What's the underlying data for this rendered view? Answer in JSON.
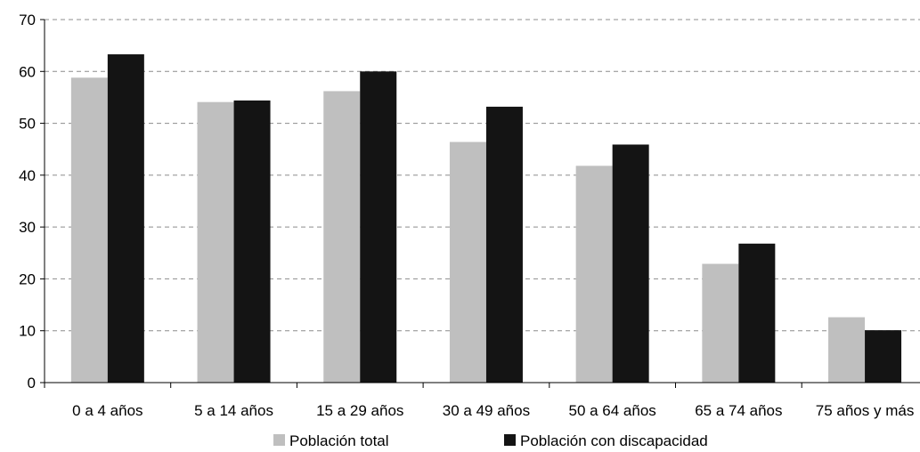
{
  "chart_data": {
    "type": "bar",
    "categories": [
      "0 a 4 años",
      "5 a 14 años",
      "15 a 29 años",
      "30 a 49 años",
      "50 a 64 años",
      "65 a 74 años",
      "75 años y más"
    ],
    "series": [
      {
        "name": "Población total",
        "color": "#bfbfbf",
        "values": [
          58.8,
          54.1,
          56.2,
          46.4,
          41.8,
          22.9,
          12.6
        ]
      },
      {
        "name": "Población con discapacidad",
        "color": "#141414",
        "values": [
          63.3,
          54.4,
          60.0,
          53.2,
          45.9,
          26.8,
          10.1
        ]
      }
    ],
    "title": "",
    "xlabel": "",
    "ylabel": "",
    "ylim": [
      0,
      70
    ],
    "yticks": [
      0,
      10,
      20,
      30,
      40,
      50,
      60,
      70
    ],
    "grid": "horizontal dashed",
    "legend_position": "bottom"
  }
}
